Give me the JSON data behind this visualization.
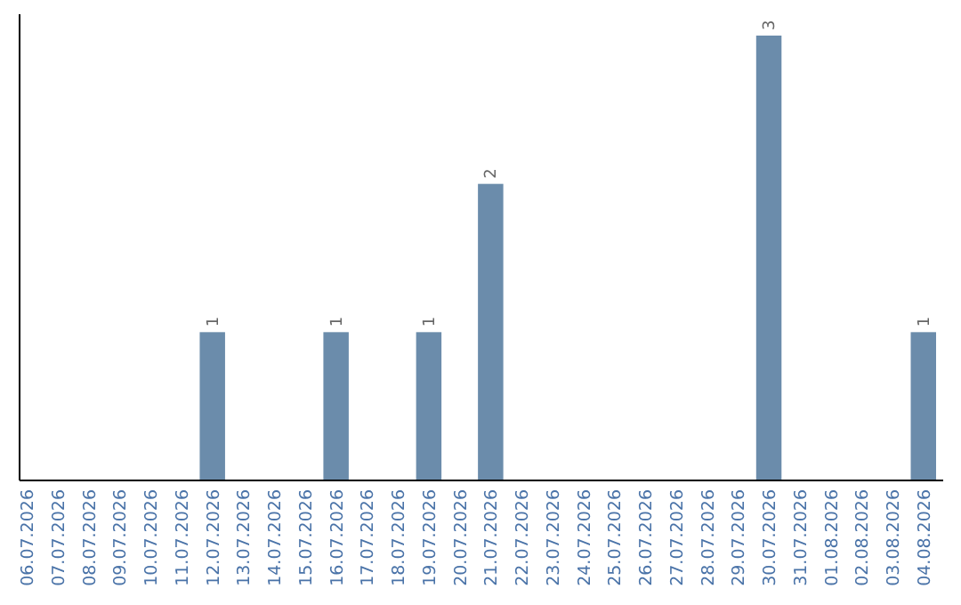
{
  "chart_data": {
    "type": "bar",
    "categories": [
      "06.07.2026",
      "07.07.2026",
      "08.07.2026",
      "09.07.2026",
      "10.07.2026",
      "11.07.2026",
      "12.07.2026",
      "13.07.2026",
      "14.07.2026",
      "15.07.2026",
      "16.07.2026",
      "17.07.2026",
      "18.07.2026",
      "19.07.2026",
      "20.07.2026",
      "21.07.2026",
      "22.07.2026",
      "23.07.2026",
      "24.07.2026",
      "25.07.2026",
      "26.07.2026",
      "27.07.2026",
      "28.07.2026",
      "29.07.2026",
      "30.07.2026",
      "31.07.2026",
      "01.08.2026",
      "02.08.2026",
      "03.08.2026",
      "04.08.2026"
    ],
    "values": [
      0,
      0,
      0,
      0,
      0,
      0,
      1,
      0,
      0,
      0,
      1,
      0,
      0,
      1,
      0,
      2,
      0,
      0,
      0,
      0,
      0,
      0,
      0,
      0,
      3,
      0,
      0,
      0,
      0,
      1
    ],
    "value_labels": [
      null,
      null,
      null,
      null,
      null,
      null,
      "1",
      null,
      null,
      null,
      "1",
      null,
      null,
      "1",
      null,
      "2",
      null,
      null,
      null,
      null,
      null,
      null,
      null,
      null,
      "3",
      null,
      null,
      null,
      null,
      "1"
    ],
    "color": "#6b8cab"
  }
}
